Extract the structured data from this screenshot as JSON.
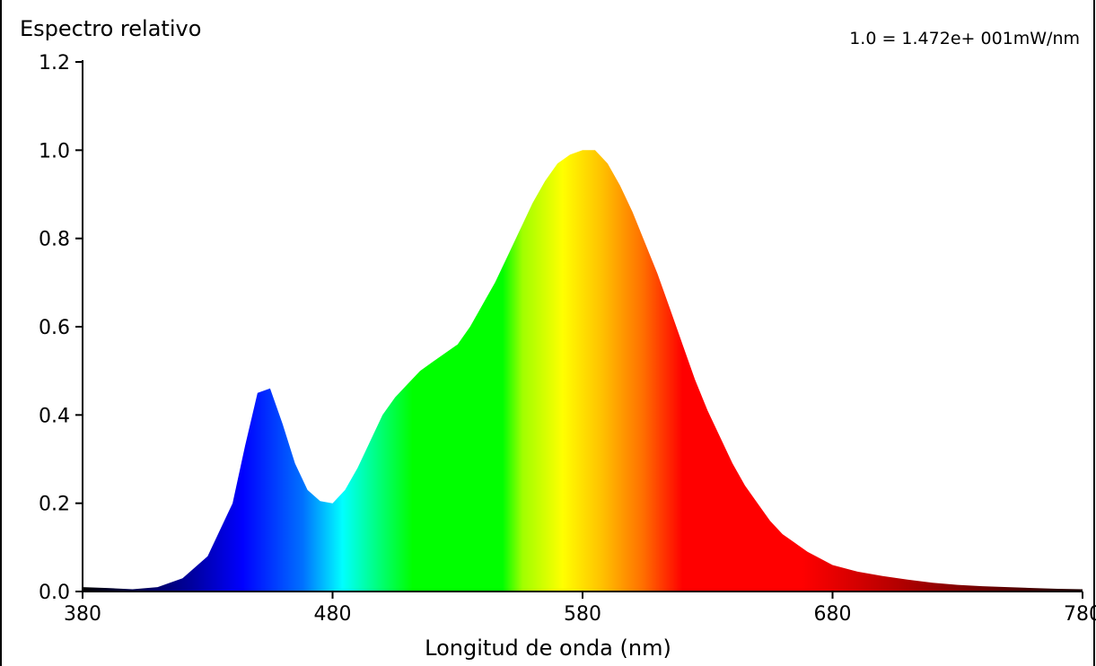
{
  "chart_data": {
    "type": "area",
    "title": "",
    "ylabel": "Espectro relativo",
    "xlabel": "Longitud de onda (nm)",
    "annotation": "1.0 = 1.472e+ 001mW/nm",
    "xlim": [
      380,
      780
    ],
    "ylim": [
      0,
      1.2
    ],
    "xticks": [
      "380",
      "480",
      "580",
      "680",
      "780"
    ],
    "yticks": [
      "0.0",
      "0.2",
      "0.4",
      "0.6",
      "0.8",
      "1.0",
      "1.2"
    ],
    "grid": false,
    "fill": "spectral color gradient (wavelength-mapped)",
    "x": [
      380,
      390,
      400,
      410,
      420,
      430,
      440,
      445,
      450,
      455,
      460,
      465,
      470,
      475,
      480,
      485,
      490,
      495,
      500,
      505,
      510,
      515,
      520,
      525,
      530,
      535,
      540,
      545,
      550,
      555,
      560,
      565,
      570,
      575,
      580,
      585,
      590,
      595,
      600,
      605,
      610,
      615,
      620,
      625,
      630,
      635,
      640,
      645,
      650,
      655,
      660,
      665,
      670,
      675,
      680,
      690,
      700,
      710,
      720,
      730,
      740,
      750,
      760,
      770,
      780
    ],
    "values": [
      0.01,
      0.008,
      0.005,
      0.01,
      0.03,
      0.08,
      0.2,
      0.33,
      0.45,
      0.46,
      0.38,
      0.29,
      0.23,
      0.205,
      0.2,
      0.23,
      0.28,
      0.34,
      0.4,
      0.44,
      0.47,
      0.5,
      0.52,
      0.54,
      0.56,
      0.6,
      0.65,
      0.7,
      0.76,
      0.82,
      0.88,
      0.93,
      0.97,
      0.99,
      1.0,
      1.0,
      0.97,
      0.92,
      0.86,
      0.79,
      0.72,
      0.64,
      0.56,
      0.48,
      0.41,
      0.35,
      0.29,
      0.24,
      0.2,
      0.16,
      0.13,
      0.11,
      0.09,
      0.075,
      0.06,
      0.045,
      0.035,
      0.027,
      0.02,
      0.015,
      0.012,
      0.01,
      0.008,
      0.006,
      0.005
    ]
  }
}
